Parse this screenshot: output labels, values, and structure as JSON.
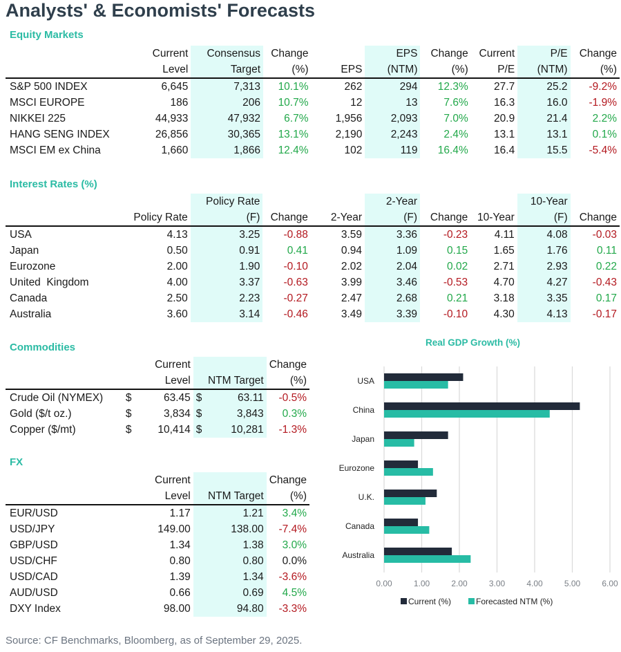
{
  "title": "Analysts' & Economists' Forecasts",
  "equity": {
    "section_title": "Equity Markets",
    "headers_top": [
      "",
      "Current",
      "Consensus",
      "Change",
      "",
      "EPS",
      "Change",
      "Current",
      "P/E",
      "Change"
    ],
    "headers_bottom": [
      "",
      "Level",
      "Target",
      "(%)",
      "EPS",
      "(NTM)",
      "(%)",
      "P/E",
      "(NTM)",
      "(%)"
    ],
    "rows": [
      {
        "name": "S&P 500 INDEX",
        "level": "6,645",
        "target": "7,313",
        "change": "10.1%",
        "change_sign": "pos",
        "eps": "262",
        "eps_ntm": "294",
        "eps_change": "12.3%",
        "eps_change_sign": "pos",
        "pe": "27.7",
        "pe_ntm": "25.2",
        "pe_change": "-9.2%",
        "pe_change_sign": "neg"
      },
      {
        "name": "MSCI EUROPE",
        "level": "186",
        "target": "206",
        "change": "10.7%",
        "change_sign": "pos",
        "eps": "12",
        "eps_ntm": "13",
        "eps_change": "7.6%",
        "eps_change_sign": "pos",
        "pe": "16.3",
        "pe_ntm": "16.0",
        "pe_change": "-1.9%",
        "pe_change_sign": "neg"
      },
      {
        "name": "NIKKEI 225",
        "level": "44,933",
        "target": "47,932",
        "change": "6.7%",
        "change_sign": "pos",
        "eps": "1,956",
        "eps_ntm": "2,093",
        "eps_change": "7.0%",
        "eps_change_sign": "pos",
        "pe": "20.9",
        "pe_ntm": "21.4",
        "pe_change": "2.2%",
        "pe_change_sign": "pos"
      },
      {
        "name": "HANG SENG INDEX",
        "level": "26,856",
        "target": "30,365",
        "change": "13.1%",
        "change_sign": "pos",
        "eps": "2,190",
        "eps_ntm": "2,243",
        "eps_change": "2.4%",
        "eps_change_sign": "pos",
        "pe": "13.1",
        "pe_ntm": "13.1",
        "pe_change": "0.1%",
        "pe_change_sign": "pos"
      },
      {
        "name": "MSCI EM ex China",
        "level": "1,660",
        "target": "1,866",
        "change": "12.4%",
        "change_sign": "pos",
        "eps": "102",
        "eps_ntm": "119",
        "eps_change": "16.4%",
        "eps_change_sign": "pos",
        "pe": "16.4",
        "pe_ntm": "15.5",
        "pe_change": "-5.4%",
        "pe_change_sign": "neg"
      }
    ]
  },
  "rates": {
    "section_title": "Interest Rates (%)",
    "headers_top": [
      "",
      "",
      "Policy Rate",
      "",
      "",
      "2-Year",
      "",
      "",
      "10-Year",
      ""
    ],
    "headers_bottom": [
      "",
      "Policy Rate",
      "(F)",
      "Change",
      "2-Year",
      "(F)",
      "Change",
      "10-Year",
      "(F)",
      "Change"
    ],
    "rows": [
      {
        "name": "USA",
        "policy": "4.13",
        "policy_f": "3.25",
        "policy_chg": "-0.88",
        "policy_chg_sign": "neg",
        "y2": "3.59",
        "y2_f": "3.36",
        "y2_chg": "-0.23",
        "y2_chg_sign": "neg",
        "y10": "4.11",
        "y10_f": "4.08",
        "y10_chg": "-0.03",
        "y10_chg_sign": "neg"
      },
      {
        "name": "Japan",
        "policy": "0.50",
        "policy_f": "0.91",
        "policy_chg": "0.41",
        "policy_chg_sign": "pos",
        "y2": "0.94",
        "y2_f": "1.09",
        "y2_chg": "0.15",
        "y2_chg_sign": "pos",
        "y10": "1.65",
        "y10_f": "1.76",
        "y10_chg": "0.11",
        "y10_chg_sign": "pos"
      },
      {
        "name": "Eurozone",
        "policy": "2.00",
        "policy_f": "1.90",
        "policy_chg": "-0.10",
        "policy_chg_sign": "neg",
        "y2": "2.02",
        "y2_f": "2.04",
        "y2_chg": "0.02",
        "y2_chg_sign": "pos",
        "y10": "2.71",
        "y10_f": "2.93",
        "y10_chg": "0.22",
        "y10_chg_sign": "pos"
      },
      {
        "name": "United  Kingdom",
        "policy": "4.00",
        "policy_f": "3.37",
        "policy_chg": "-0.63",
        "policy_chg_sign": "neg",
        "y2": "3.99",
        "y2_f": "3.46",
        "y2_chg": "-0.53",
        "y2_chg_sign": "neg",
        "y10": "4.70",
        "y10_f": "4.27",
        "y10_chg": "-0.43",
        "y10_chg_sign": "neg"
      },
      {
        "name": "Canada",
        "policy": "2.50",
        "policy_f": "2.23",
        "policy_chg": "-0.27",
        "policy_chg_sign": "neg",
        "y2": "2.47",
        "y2_f": "2.68",
        "y2_chg": "0.21",
        "y2_chg_sign": "pos",
        "y10": "3.18",
        "y10_f": "3.35",
        "y10_chg": "0.17",
        "y10_chg_sign": "pos"
      },
      {
        "name": "Australia",
        "policy": "3.60",
        "policy_f": "3.14",
        "policy_chg": "-0.46",
        "policy_chg_sign": "neg",
        "y2": "3.49",
        "y2_f": "3.39",
        "y2_chg": "-0.10",
        "y2_chg_sign": "neg",
        "y10": "4.30",
        "y10_f": "4.13",
        "y10_chg": "-0.17",
        "y10_chg_sign": "neg"
      }
    ]
  },
  "commodities": {
    "section_title": "Commodities",
    "headers_top": [
      "",
      "Current",
      "",
      "Change"
    ],
    "headers_bottom": [
      "",
      "Level",
      "NTM Target",
      "(%)"
    ],
    "currency_symbol": "$",
    "rows": [
      {
        "name": "Crude Oil (NYMEX)",
        "level": "63.45",
        "target": "63.11",
        "change": "-0.5%",
        "change_sign": "neg"
      },
      {
        "name": "Gold ($/t oz.)",
        "level": "3,834",
        "target": "3,843",
        "change": "0.3%",
        "change_sign": "pos"
      },
      {
        "name": "Copper ($/mt)",
        "level": "10,414",
        "target": "10,281",
        "change": "-1.3%",
        "change_sign": "neg"
      }
    ]
  },
  "fx": {
    "section_title": "FX",
    "headers_top": [
      "",
      "Current",
      "",
      "Change"
    ],
    "headers_bottom": [
      "",
      "Level",
      "NTM Target",
      "(%)"
    ],
    "rows": [
      {
        "name": "EUR/USD",
        "level": "1.17",
        "target": "1.21",
        "change": "3.4%",
        "change_sign": "pos"
      },
      {
        "name": "USD/JPY",
        "level": "149.00",
        "target": "138.00",
        "change": "-7.4%",
        "change_sign": "neg"
      },
      {
        "name": "GBP/USD",
        "level": "1.34",
        "target": "1.38",
        "change": "3.0%",
        "change_sign": "pos"
      },
      {
        "name": "USD/CHF",
        "level": "0.80",
        "target": "0.80",
        "change": "0.0%",
        "change_sign": "neu"
      },
      {
        "name": "USD/CAD",
        "level": "1.39",
        "target": "1.34",
        "change": "-3.6%",
        "change_sign": "neg"
      },
      {
        "name": "AUD/USD",
        "level": "0.66",
        "target": "0.69",
        "change": "4.5%",
        "change_sign": "pos"
      },
      {
        "name": "DXY Index",
        "level": "98.00",
        "target": "94.80",
        "change": "-3.3%",
        "change_sign": "neg"
      }
    ]
  },
  "colors": {
    "accent": "#2bbba4",
    "highlight": "#e0fbf8",
    "positive": "#22a84a",
    "negative": "#b3181f",
    "current_bar": "#222b3a",
    "forecast_bar": "#27bca5",
    "title": "#2f3f4c"
  },
  "chart_data": {
    "type": "bar",
    "orientation": "horizontal",
    "title": "Real GDP Growth (%)",
    "categories": [
      "USA",
      "China",
      "Japan",
      "Eurozone",
      "U.K.",
      "Canada",
      "Australia"
    ],
    "series": [
      {
        "name": "Current (%)",
        "values": [
          2.1,
          5.2,
          1.7,
          0.9,
          1.4,
          0.9,
          1.8
        ]
      },
      {
        "name": "Forecasted NTM (%)",
        "values": [
          1.7,
          4.4,
          0.8,
          1.3,
          1.1,
          1.2,
          2.3
        ]
      }
    ],
    "xlim": [
      0,
      6
    ],
    "xticks": [
      "0.00",
      "1.00",
      "2.00",
      "3.00",
      "4.00",
      "5.00",
      "6.00"
    ],
    "xlabel": "",
    "ylabel": "",
    "grid": true,
    "legend": "bottom"
  },
  "source": "Source: CF Benchmarks, Bloomberg, as of September 29, 2025."
}
